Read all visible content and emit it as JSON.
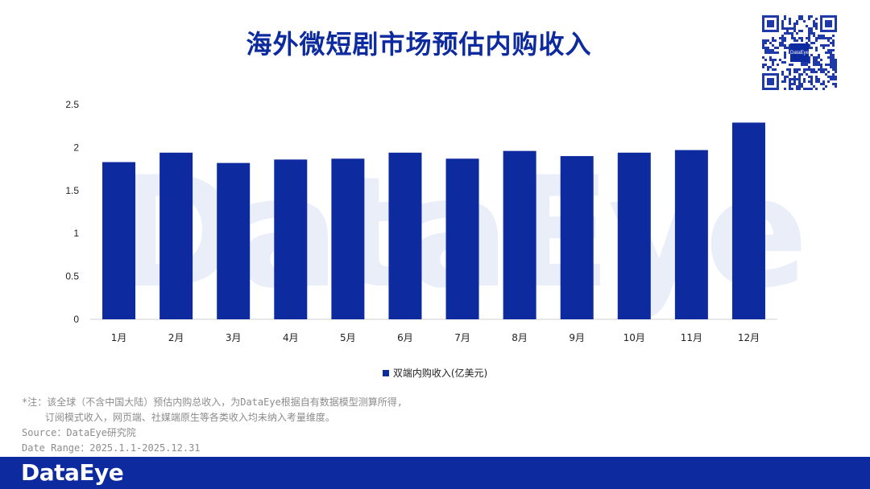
{
  "title": "海外微短剧市场预估内购收入",
  "watermark": "DataEye",
  "qr_center_label": "DataEye",
  "chart_data": {
    "type": "bar",
    "categories": [
      "1月",
      "2月",
      "3月",
      "4月",
      "5月",
      "6月",
      "7月",
      "8月",
      "9月",
      "10月",
      "11月",
      "12月"
    ],
    "series": [
      {
        "name": "双端内购收入(亿美元)",
        "values": [
          1.83,
          1.94,
          1.82,
          1.86,
          1.87,
          1.94,
          1.87,
          1.96,
          1.9,
          1.94,
          1.97,
          2.29
        ]
      }
    ],
    "yticks": [
      "0",
      "0.5",
      "1",
      "1.5",
      "2",
      "2.5"
    ],
    "ylim": [
      0,
      2.5
    ],
    "grid": false,
    "legend_position": "bottom",
    "bar_color": "#0d2a9e"
  },
  "notes": [
    "*注：该全球（不含中国大陆）预估内购总收入，为DataEye根据自有数据模型测算所得,",
    "    订阅模式收入，网页端、社媒端原生等各类收入均未纳入考量维度。",
    "Source：DataEye研究院",
    "Date Range：2025.1.1-2025.12.31"
  ],
  "footer": {
    "logo": "DataEye"
  },
  "colors": {
    "brand": "#0d2a9e",
    "note_text": "#8c8c8c"
  }
}
